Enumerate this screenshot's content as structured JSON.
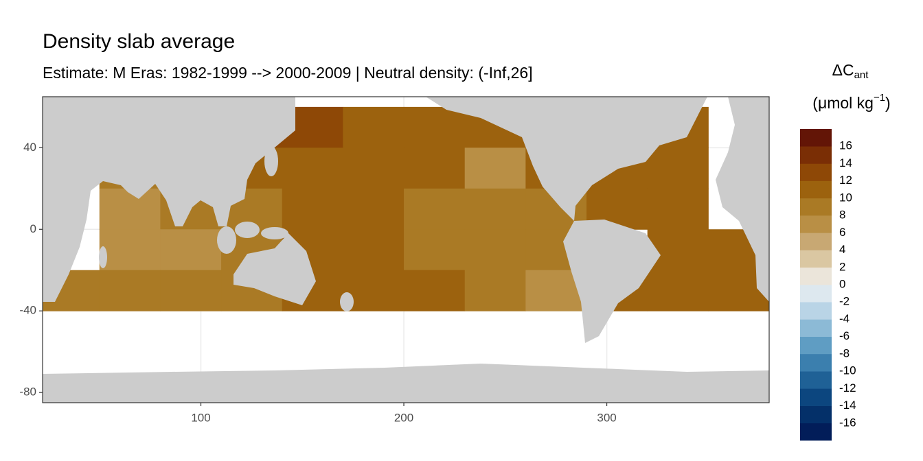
{
  "chart_data": {
    "type": "raster",
    "title": "Density slab average",
    "subtitle": "Estimate: M Eras: 1982-1999 --> 2000-2009 | Neutral density: (-Inf,26]",
    "x": [
      35,
      65,
      95,
      125,
      155,
      185,
      215,
      245,
      275,
      305,
      335,
      365
    ],
    "y": [
      50,
      30,
      10,
      -10,
      -30
    ],
    "cell_width": 30,
    "cell_height": 20,
    "values": [
      [
        null,
        null,
        null,
        12,
        12,
        11,
        11,
        10,
        null,
        11,
        11,
        null
      ],
      [
        null,
        8,
        null,
        11,
        11,
        10,
        10,
        6,
        10,
        11,
        10,
        null
      ],
      [
        null,
        7,
        8,
        9,
        10,
        10,
        9,
        9,
        8,
        11,
        11,
        null
      ],
      [
        null,
        7,
        7,
        9,
        10,
        10,
        9,
        9,
        8,
        null,
        10,
        10
      ],
      [
        9,
        8,
        8,
        8,
        11,
        10,
        10,
        9,
        7,
        10,
        10,
        10
      ]
    ],
    "xlim": [
      22,
      380
    ],
    "ylim": [
      -85,
      65
    ],
    "xticks": [
      100,
      200,
      300
    ],
    "yticks": [
      40,
      0,
      -40,
      -80
    ],
    "grid": true,
    "legend": {
      "title": "ΔC",
      "title_subscript": "ant",
      "unit": "(μmol kg",
      "unit_superscript": "−1",
      "unit_close": ")",
      "breaks": [
        -18,
        -16,
        -14,
        -12,
        -10,
        -8,
        -6,
        -4,
        -2,
        0,
        2,
        4,
        6,
        8,
        10,
        12,
        14,
        16,
        18
      ],
      "colors": [
        "#021d59",
        "#043069",
        "#0c467f",
        "#1f6196",
        "#3b7fae",
        "#5f9dc3",
        "#8cbad6",
        "#b9d4e6",
        "#dde8ef",
        "#ebe5da",
        "#dac7a2",
        "#c8a873",
        "#b98f45",
        "#aa7a25",
        "#9c620e",
        "#8e4806",
        "#7a2e05",
        "#631506"
      ],
      "ticks": [
        -16,
        -14,
        -12,
        -10,
        -8,
        -6,
        -4,
        -2,
        0,
        2,
        4,
        6,
        8,
        10,
        12,
        14,
        16
      ]
    }
  }
}
